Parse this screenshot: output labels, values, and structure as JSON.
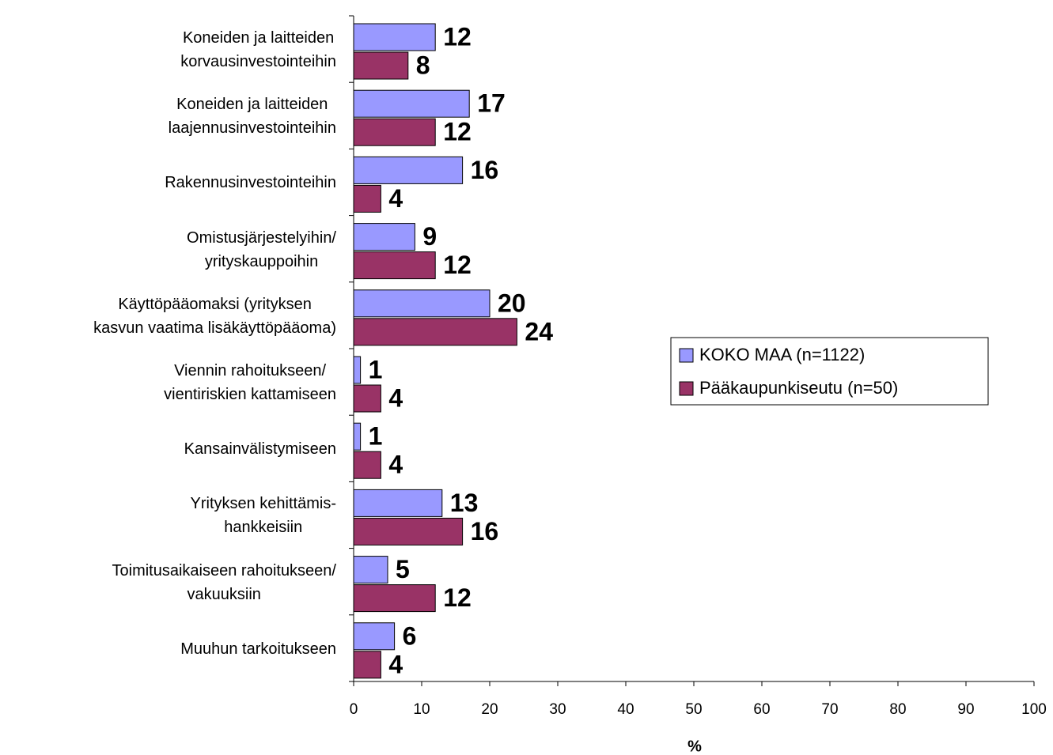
{
  "chart_data": {
    "type": "bar",
    "orientation": "horizontal",
    "xlabel": "%",
    "categories": [
      "Koneiden ja laitteiden\nkorvausinvestointeihin",
      "Koneiden ja laitteiden\nlaajennusinvestointeihin",
      "Rakennusinvestointeihin",
      "Omistusjärjestelyihin/\nyrityskauppoihin",
      "Käyttöpääomaksi (yrityksen\nkasvun vaatima lisäkäyttöpääoma)",
      "Viennin rahoitukseen/\nvientiriskien kattamiseen",
      "Kansainvälistymiseen",
      "Yrityksen kehittämis-\nhankkeisiin",
      "Toimitusaikaiseen rahoitukseen/\nvakuuksiin",
      "Muuhun tarkoitukseen"
    ],
    "series": [
      {
        "name": "KOKO MAA (n=1122)",
        "color": "#9999ff",
        "values": [
          12,
          17,
          16,
          9,
          20,
          1,
          1,
          13,
          5,
          6
        ]
      },
      {
        "name": "Pääkaupunkiseutu (n=50)",
        "color": "#993366",
        "values": [
          8,
          12,
          4,
          12,
          24,
          4,
          4,
          16,
          12,
          4
        ]
      }
    ],
    "xlim": [
      0,
      100
    ],
    "xticks": [
      0,
      10,
      20,
      30,
      40,
      50,
      60,
      70,
      80,
      90,
      100
    ],
    "grid": false,
    "legend": "right"
  }
}
